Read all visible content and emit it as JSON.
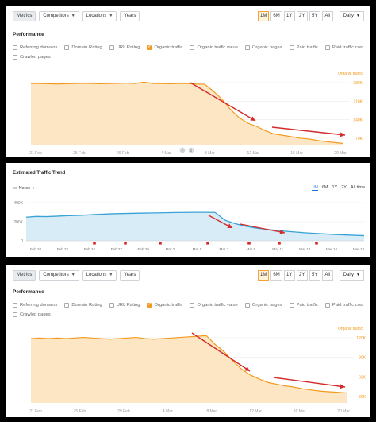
{
  "toolbar": {
    "metrics": "Metrics",
    "competitors": "Competitors",
    "locations": "Locations",
    "years": "Years"
  },
  "periods": [
    "1M",
    "6M",
    "1Y",
    "2Y",
    "5Y",
    "All"
  ],
  "active_period": "1M",
  "interval": "Daily",
  "performance_title": "Performance",
  "checkboxes": [
    {
      "label": "Referring domains",
      "checked": false
    },
    {
      "label": "Domain Rating",
      "checked": false
    },
    {
      "label": "URL Rating",
      "checked": false
    },
    {
      "label": "Organic traffic",
      "checked": true
    },
    {
      "label": "Organic traffic value",
      "checked": false
    },
    {
      "label": "Organic pages",
      "checked": false
    },
    {
      "label": "Paid traffic",
      "checked": false
    },
    {
      "label": "Paid traffic cost",
      "checked": false
    },
    {
      "label": "Crawled pages",
      "checked": false
    }
  ],
  "colors": {
    "organic": "#f39a1e",
    "trend": "#3aa3d6",
    "arrow": "#d42a2a",
    "note": "#d42a2a"
  },
  "chart1": {
    "series_label": "Organic traffic",
    "y_ticks": [
      "280K",
      "210K",
      "140K",
      "70K"
    ],
    "x_ticks": [
      "21 Feb",
      "25 Feb",
      "29 Feb",
      "4 Mar",
      "8 Mar",
      "12 Mar",
      "16 Mar",
      "20 Mar"
    ],
    "notes_markers": [
      "A",
      "2"
    ]
  },
  "chart2": {
    "title": "Estimated Traffic Trend",
    "notes_label": "Notes",
    "periods": [
      "1M",
      "6M",
      "1Y",
      "2Y",
      "All time"
    ],
    "active_period": "1M",
    "y_ticks": [
      "400K",
      "200K",
      "0"
    ],
    "x_ticks": [
      "Feb 20",
      "Feb 22",
      "Feb 24",
      "Feb 27",
      "Feb 29",
      "Mar 2",
      "Mar 5",
      "Mar 7",
      "Mar 9",
      "Mar 11",
      "Mar 14",
      "Mar 16",
      "Mar 18"
    ]
  },
  "chart3": {
    "series_label": "Organic traffic",
    "y_ticks": [
      "120K",
      "90K",
      "60K",
      "30K"
    ],
    "x_ticks": [
      "21 Feb",
      "25 Feb",
      "29 Feb",
      "4 Mar",
      "8 Mar",
      "12 Mar",
      "16 Mar",
      "20 Mar"
    ]
  },
  "chart_data": [
    {
      "type": "area",
      "series": [
        {
          "name": "Organic traffic",
          "values": [
            262,
            262,
            261,
            260,
            261,
            262,
            263,
            262,
            261,
            262,
            263,
            264,
            262,
            268,
            262,
            262,
            261,
            262,
            262,
            260,
            259,
            230,
            195,
            150,
            115,
            92,
            78,
            60,
            46,
            40,
            34,
            28,
            24,
            18,
            13,
            9,
            5
          ]
        }
      ],
      "ylim": [
        0,
        300
      ],
      "grid": true
    },
    {
      "type": "area",
      "series": [
        {
          "values": [
            240,
            248,
            246,
            250,
            255,
            258,
            262,
            268,
            272,
            276,
            278,
            280,
            282,
            284,
            286,
            288,
            289,
            290,
            290,
            289,
            210,
            175,
            150,
            130,
            118,
            108,
            98,
            90,
            82,
            76,
            70,
            64,
            60,
            56,
            52
          ]
        }
      ],
      "ylim": [
        0,
        420
      ],
      "grid": true
    },
    {
      "type": "area",
      "series": [
        {
          "name": "Organic traffic",
          "values": [
            110,
            111,
            110,
            111,
            110,
            111,
            112,
            111,
            110,
            109,
            110,
            111,
            112,
            110,
            109,
            110,
            111,
            112,
            113,
            114,
            115,
            100,
            88,
            72,
            58,
            48,
            41,
            35,
            32,
            29,
            27,
            24,
            22,
            20,
            19,
            18,
            17
          ]
        }
      ],
      "ylim": [
        0,
        125
      ],
      "grid": true
    }
  ]
}
